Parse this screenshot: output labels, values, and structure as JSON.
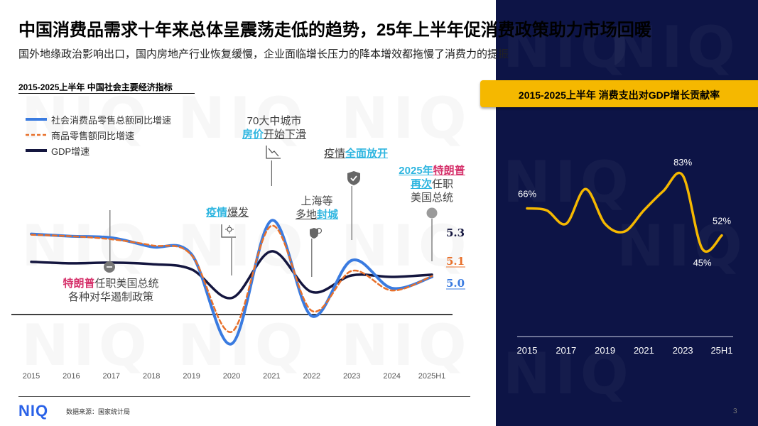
{
  "header": {
    "title": "中国消费品需求十年来总体呈震荡走低的趋势，25年上半年促消费政策助力市场回暖",
    "subtitle": "国外地缘政治影响出口，国内房地产行业恢复缓慢，企业面临增长压力的降本增效都拖慢了消费力的提振"
  },
  "watermark": "NIQ",
  "left_chart_heading": "2015-2025上半年 中国社会主要经济指标",
  "right_chart_heading": "2015-2025上半年 消费支出对GDP增长贡献率",
  "annotations": {
    "trump1": {
      "hl": "特朗普",
      "rest": "任职美国总统",
      "line2": "各种对华遏制政策"
    },
    "covid_outbreak": {
      "hl": "疫情",
      "rest": "爆发"
    },
    "housing": {
      "line1": "70大中城市",
      "hl": "房价",
      "rest": "开始下滑"
    },
    "shanghai": {
      "line1": "上海等",
      "pre": "多地",
      "hl": "封城"
    },
    "covid_open": {
      "pre": "疫情",
      "hl": "全面放开"
    },
    "trump2": {
      "hl1a": "2025年",
      "hl1b": "特朗普",
      "hl2": "再次",
      "rest2": "任职",
      "line3": "美国总统"
    }
  },
  "footer": {
    "logo": "NIQ",
    "source": "数据来源：国家统计局",
    "page": "3"
  },
  "colors": {
    "retail": "#3a7be0",
    "goods": "#e8702a",
    "gdp": "#14163f",
    "right_line": "#f5b800",
    "highlight_blue": "#2fb6e0",
    "highlight_pink": "#d6336c",
    "panel": "#0d1446"
  },
  "chart_data": [
    {
      "type": "line",
      "title": "2015-2025上半年 中国社会主要经济指标",
      "categories": [
        "2015",
        "2016",
        "2017",
        "2018",
        "2019",
        "2020",
        "2021",
        "2022",
        "2023",
        "2024",
        "2025H1"
      ],
      "series": [
        {
          "name": "社会消费品零售总额同比增速",
          "style": "solid",
          "values": [
            10.7,
            10.4,
            10.2,
            9.0,
            8.0,
            -3.9,
            12.5,
            -0.2,
            7.2,
            3.5,
            5.0
          ]
        },
        {
          "name": "商品零售额同比增速",
          "style": "dashed",
          "values": [
            10.6,
            10.4,
            10.0,
            9.2,
            7.9,
            -2.3,
            11.8,
            0.5,
            5.8,
            3.2,
            5.1
          ]
        },
        {
          "name": "GDP增速",
          "style": "solid",
          "values": [
            7.0,
            6.8,
            6.9,
            6.7,
            6.0,
            2.2,
            8.4,
            3.0,
            5.2,
            5.0,
            5.3
          ]
        }
      ],
      "end_labels": {
        "GDP增速": "5.3",
        "商品零售额同比增速": "5.1",
        "社会消费品零售总额同比增速": "5.0"
      },
      "baseline": 0,
      "ylim": [
        -6,
        17
      ]
    },
    {
      "type": "line",
      "title": "2015-2025上半年 消费支出对GDP增长贡献率",
      "categories": [
        "2015",
        "2016",
        "2017",
        "2018",
        "2019",
        "2020",
        "2021",
        "2022",
        "2023",
        "2024",
        "25H1"
      ],
      "x_tick_labels": [
        "2015",
        "2017",
        "2019",
        "2021",
        "2023",
        "25H1"
      ],
      "values": [
        66,
        65,
        58,
        76,
        58,
        54,
        65,
        75,
        83,
        45,
        52
      ],
      "data_labels": [
        {
          "index": 0,
          "text": "66%"
        },
        {
          "index": 8,
          "text": "83%"
        },
        {
          "index": 9,
          "text": "45%"
        },
        {
          "index": 10,
          "text": "52%"
        }
      ],
      "ylim": [
        0,
        100
      ]
    }
  ]
}
